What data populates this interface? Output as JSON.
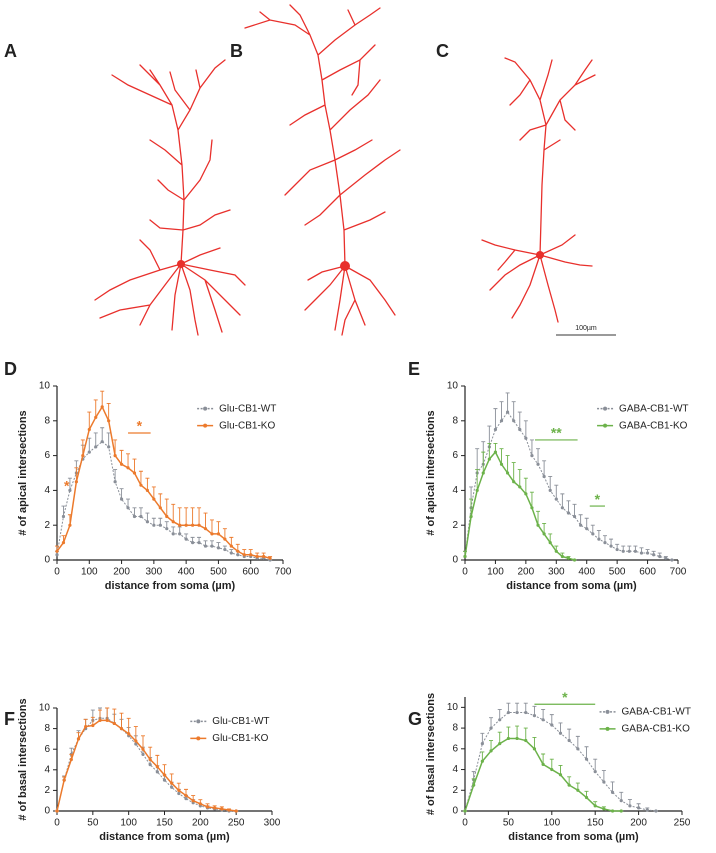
{
  "panels": {
    "A": "A",
    "B": "B",
    "C": "C",
    "D": "D",
    "E": "E",
    "F": "F",
    "G": "G"
  },
  "scale_bar": "100µm",
  "chart_data": [
    {
      "type": "line",
      "panel": "D",
      "x_label": "distance from soma (µm)",
      "y_label": "# of apical intersections",
      "xlim": [
        0,
        700
      ],
      "xticks": [
        0,
        100,
        200,
        300,
        400,
        500,
        600,
        700
      ],
      "ylim": [
        0,
        10
      ],
      "yticks": [
        0,
        2,
        4,
        6,
        8,
        10
      ],
      "legend": "upper right",
      "x": [
        0,
        20,
        40,
        60,
        80,
        100,
        120,
        140,
        160,
        180,
        200,
        220,
        240,
        260,
        280,
        300,
        320,
        340,
        360,
        380,
        400,
        420,
        440,
        460,
        480,
        500,
        520,
        540,
        560,
        580,
        600,
        620,
        640,
        660
      ],
      "series": [
        {
          "name": "Glu-CB1-WT",
          "color": "#8a8f98",
          "values": [
            0.3,
            2.5,
            4,
            5,
            5.8,
            6.2,
            6.5,
            6.8,
            6.5,
            4.5,
            3.5,
            3,
            2.5,
            2.5,
            2.2,
            2,
            2,
            1.8,
            1.5,
            1.5,
            1.2,
            1,
            1,
            0.8,
            0.8,
            0.7,
            0.6,
            0.4,
            0.3,
            0.2,
            0.2,
            0.1,
            0.1,
            0
          ],
          "errors": [
            0.2,
            0.6,
            0.7,
            0.7,
            0.8,
            0.8,
            0.8,
            0.8,
            0.8,
            0.7,
            0.6,
            0.5,
            0.5,
            0.5,
            0.5,
            0.4,
            0.4,
            0.4,
            0.4,
            0.4,
            0.3,
            0.3,
            0.3,
            0.3,
            0.3,
            0.3,
            0.2,
            0.2,
            0.2,
            0.1,
            0.1,
            0.1,
            0.1,
            0
          ]
        },
        {
          "name": "Glu-CB1-KO",
          "color": "#ec7a2c",
          "values": [
            0.5,
            1,
            2,
            4.5,
            6,
            7.5,
            8.2,
            8.8,
            8,
            6,
            5.5,
            5.3,
            5,
            4.3,
            4,
            3.5,
            3,
            2.5,
            2.2,
            2,
            2,
            2,
            2,
            1.8,
            1.5,
            1.5,
            1.2,
            0.8,
            0.5,
            0.3,
            0.3,
            0.2,
            0.2,
            0.1
          ],
          "errors": [
            0.3,
            0.4,
            0.6,
            0.8,
            0.9,
            1,
            1,
            0.9,
            1,
            0.9,
            0.8,
            0.8,
            0.8,
            0.8,
            0.7,
            0.7,
            0.8,
            1,
            1,
            1,
            1,
            1,
            1,
            0.9,
            0.8,
            0.7,
            0.6,
            0.5,
            0.4,
            0.3,
            0.3,
            0.2,
            0.2,
            0.1
          ]
        }
      ],
      "annotations": [
        {
          "text": "*",
          "x": 30,
          "y": 4.2,
          "color": "#ec7a2c"
        },
        {
          "text": "*",
          "x_range": [
            220,
            290
          ],
          "y": 7.3,
          "color": "#ec7a2c"
        }
      ]
    },
    {
      "type": "line",
      "panel": "E",
      "x_label": "distance from soma (µm)",
      "y_label": "# of apical intersections",
      "xlim": [
        0,
        700
      ],
      "xticks": [
        0,
        100,
        200,
        300,
        400,
        500,
        600,
        700
      ],
      "ylim": [
        0,
        10
      ],
      "yticks": [
        0,
        2,
        4,
        6,
        8,
        10
      ],
      "legend": "upper right",
      "x": [
        0,
        20,
        40,
        60,
        80,
        100,
        120,
        140,
        160,
        180,
        200,
        220,
        240,
        260,
        280,
        300,
        320,
        340,
        360,
        380,
        400,
        420,
        440,
        460,
        480,
        500,
        520,
        540,
        560,
        580,
        600,
        620,
        640,
        660,
        680
      ],
      "series": [
        {
          "name": "GABA-CB1-WT",
          "color": "#8a8f98",
          "values": [
            0.2,
            3,
            5,
            5.5,
            6.5,
            7.5,
            8,
            8.5,
            8,
            7.5,
            7,
            6,
            5.5,
            4.8,
            4,
            3.5,
            3,
            2.7,
            2.5,
            2,
            1.8,
            1.5,
            1.2,
            1,
            0.8,
            0.6,
            0.5,
            0.5,
            0.5,
            0.4,
            0.4,
            0.3,
            0.2,
            0.1,
            0
          ],
          "errors": [
            0.3,
            1.2,
            1.4,
            1.3,
            1.2,
            1.2,
            1.1,
            1.1,
            1.1,
            1,
            1,
            0.9,
            0.9,
            0.9,
            0.8,
            0.8,
            0.8,
            0.7,
            0.7,
            0.6,
            0.6,
            0.5,
            0.5,
            0.4,
            0.4,
            0.3,
            0.3,
            0.3,
            0.3,
            0.3,
            0.2,
            0.2,
            0.2,
            0.1,
            0
          ]
        },
        {
          "name": "GABA-CB1-KO",
          "color": "#6cb24a",
          "values": [
            0.2,
            2.5,
            4,
            5,
            5.8,
            6.2,
            5.5,
            5,
            4.5,
            4.2,
            3.8,
            3,
            2,
            1.5,
            1,
            0.5,
            0.2,
            0.1,
            0,
            null,
            null,
            null,
            null,
            null,
            null,
            null,
            null,
            null,
            null,
            null,
            null,
            null,
            null,
            null,
            null
          ],
          "errors": [
            0.3,
            1,
            1.2,
            1.2,
            0.9,
            0.5,
            0.9,
            1,
            1.1,
            1,
            0.9,
            0.9,
            0.8,
            0.6,
            0.5,
            0.3,
            0.2,
            0.1,
            0,
            null,
            null,
            null,
            null,
            null,
            null,
            null,
            null,
            null,
            null,
            null,
            null,
            null,
            null,
            null,
            null
          ]
        }
      ],
      "annotations": [
        {
          "text": "**",
          "x_range": [
            230,
            370
          ],
          "y": 6.9,
          "color": "#6cb24a"
        },
        {
          "text": "*",
          "x_range": [
            410,
            460
          ],
          "y": 3.1,
          "color": "#6cb24a"
        }
      ]
    },
    {
      "type": "line",
      "panel": "F",
      "x_label": "distance from soma (µm)",
      "y_label": "# of basal intersections",
      "xlim": [
        0,
        300
      ],
      "xticks": [
        0,
        50,
        100,
        150,
        200,
        250,
        300
      ],
      "ylim": [
        0,
        10
      ],
      "yticks": [
        0,
        2,
        4,
        6,
        8,
        10
      ],
      "legend": "upper right",
      "x": [
        0,
        10,
        20,
        30,
        40,
        50,
        60,
        70,
        80,
        90,
        100,
        110,
        120,
        130,
        140,
        150,
        160,
        170,
        180,
        190,
        200,
        210,
        220,
        230,
        240,
        250
      ],
      "series": [
        {
          "name": "Glu-CB1-WT",
          "color": "#8a8f98",
          "values": [
            0,
            3,
            5.5,
            7,
            8,
            8.8,
            9,
            9,
            8.5,
            8,
            7.3,
            6.5,
            5.5,
            4.5,
            3.8,
            3,
            2.3,
            1.7,
            1.2,
            0.8,
            0.5,
            0.3,
            0.2,
            0.1,
            0,
            0
          ],
          "errors": [
            0,
            0.4,
            0.6,
            0.8,
            0.9,
            1,
            1,
            1,
            0.9,
            0.9,
            0.8,
            0.8,
            0.7,
            0.7,
            0.6,
            0.5,
            0.5,
            0.4,
            0.3,
            0.3,
            0.2,
            0.2,
            0.1,
            0.1,
            0,
            0
          ]
        },
        {
          "name": "Glu-CB1-KO",
          "color": "#ec7a2c",
          "values": [
            0,
            3,
            5,
            7,
            8.2,
            8.3,
            8.8,
            8.8,
            8.5,
            8,
            7.5,
            6.8,
            6,
            5,
            4.3,
            3.5,
            2.7,
            2,
            1.5,
            1,
            0.7,
            0.4,
            0.3,
            0.2,
            0.1,
            0
          ],
          "errors": [
            0,
            0.3,
            0.5,
            0.6,
            0.7,
            0.8,
            1,
            1.2,
            1.4,
            1.5,
            1.5,
            1.4,
            1.3,
            1.2,
            1.1,
            1,
            0.9,
            0.7,
            0.6,
            0.5,
            0.4,
            0.3,
            0.2,
            0.2,
            0.1,
            0
          ]
        }
      ],
      "annotations": []
    },
    {
      "type": "line",
      "panel": "G",
      "x_label": "distance from soma (µm)",
      "y_label": "# of basal intersections",
      "xlim": [
        0,
        250
      ],
      "xticks": [
        0,
        50,
        100,
        150,
        200,
        250
      ],
      "ylim": [
        0,
        11
      ],
      "yticks": [
        0,
        2,
        4,
        6,
        8,
        10
      ],
      "legend": "upper right",
      "x": [
        0,
        10,
        20,
        30,
        40,
        50,
        60,
        70,
        80,
        90,
        100,
        110,
        120,
        130,
        140,
        150,
        160,
        170,
        180,
        190,
        200,
        210,
        220
      ],
      "series": [
        {
          "name": "GABA-CB1-WT",
          "color": "#8a8f98",
          "values": [
            0,
            3,
            6.5,
            8,
            8.8,
            9.5,
            9.5,
            9.5,
            9.2,
            8.8,
            8.3,
            7.5,
            6.8,
            6,
            5,
            3.8,
            2.8,
            1.8,
            1,
            0.5,
            0.3,
            0.1,
            0
          ],
          "errors": [
            0,
            0.8,
            1,
            1,
            1,
            0.9,
            0.9,
            0.9,
            0.9,
            1,
            1,
            1,
            1.1,
            1.2,
            1.2,
            1.2,
            1.1,
            1,
            0.8,
            0.6,
            0.4,
            0.2,
            0
          ]
        },
        {
          "name": "GABA-CB1-KO",
          "color": "#6cb24a",
          "values": [
            0,
            2.5,
            4.8,
            5.8,
            6.5,
            7,
            7,
            6.8,
            6,
            4.5,
            4,
            3.5,
            2.5,
            2,
            1.3,
            0.5,
            0.2,
            0,
            0,
            null,
            null,
            null,
            null
          ],
          "errors": [
            0,
            0.6,
            0.9,
            1,
            1.1,
            1.1,
            1.2,
            1.2,
            1.1,
            1,
            1,
            0.9,
            0.8,
            0.7,
            0.6,
            0.4,
            0.2,
            0,
            0,
            null,
            null,
            null,
            null
          ]
        }
      ],
      "annotations": [
        {
          "text": "*",
          "x_range": [
            80,
            150
          ],
          "y": 10.3,
          "color": "#6cb24a"
        }
      ]
    }
  ]
}
